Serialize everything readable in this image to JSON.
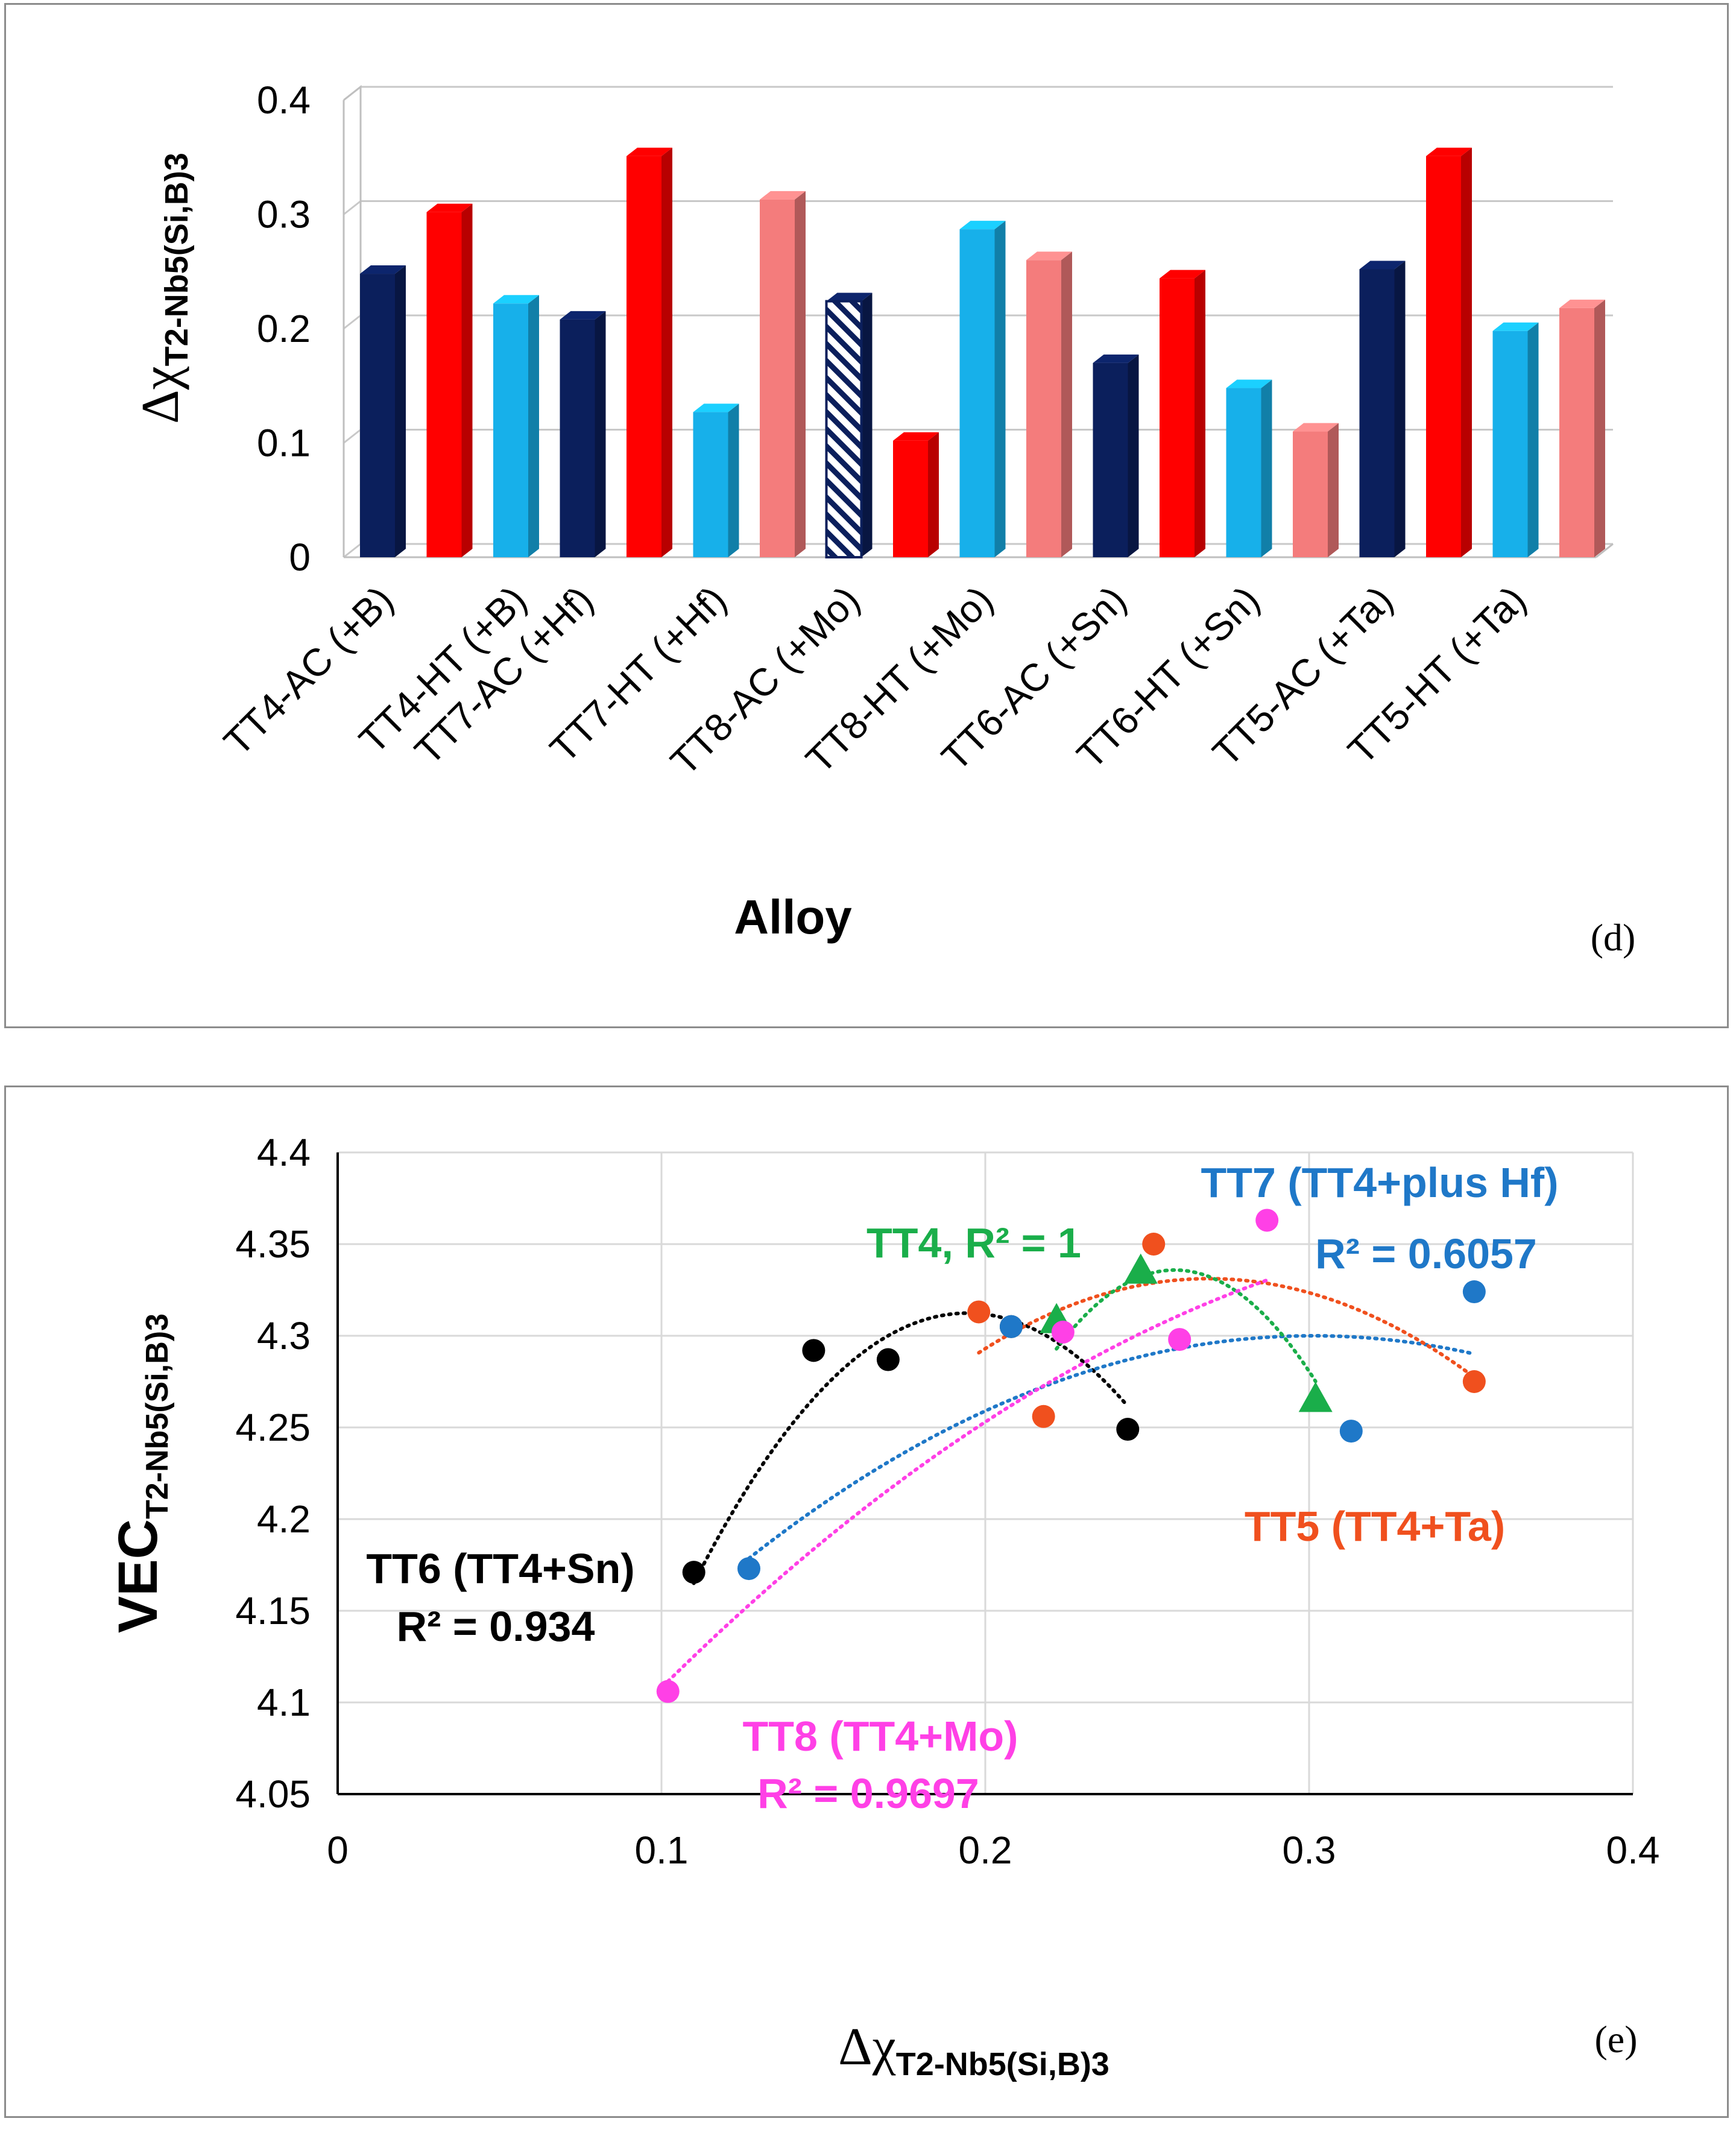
{
  "chart_data": [
    {
      "type": "bar",
      "panel_label": "(d)",
      "title": "",
      "xlabel": "Alloy",
      "ylabel": "Δχ",
      "ylabel_sub": "T2-Nb5(Si,B)3",
      "ylim": [
        0,
        0.4
      ],
      "yticks": [
        "0",
        "0.1",
        "0.2",
        "0.3",
        "0.4"
      ],
      "grid": true,
      "categories": [
        "TT4-AC (+B)",
        "TT4-HT (+B)",
        "TT7-AC (+Hf)",
        "TT7-HT (+Hf)",
        "TT8-AC (+Mo)",
        "TT8-HT (+Mo)",
        "TT6-AC (+Sn)",
        "TT6-HT (+Sn)",
        "TT5-AC (+Ta)",
        "TT5-HT (+Ta)"
      ],
      "category_positions": [
        0,
        2,
        3,
        5,
        7,
        9,
        11,
        13,
        15,
        17
      ],
      "bars": [
        {
          "value": 0.248,
          "color": "#0b1f5c",
          "fill": "solid"
        },
        {
          "value": 0.302,
          "color": "#ff0000",
          "fill": "solid"
        },
        {
          "value": 0.222,
          "color": "#17b0ea",
          "fill": "solid"
        },
        {
          "value": 0.208,
          "color": "#0b1f5c",
          "fill": "solid"
        },
        {
          "value": 0.351,
          "color": "#ff0000",
          "fill": "solid"
        },
        {
          "value": 0.127,
          "color": "#17b0ea",
          "fill": "solid"
        },
        {
          "value": 0.313,
          "color": "#f47c7c",
          "fill": "solid"
        },
        {
          "value": 0.224,
          "color": "#0b1f5c",
          "fill": "hatched"
        },
        {
          "value": 0.102,
          "color": "#ff0000",
          "fill": "solid"
        },
        {
          "value": 0.287,
          "color": "#17b0ea",
          "fill": "solid"
        },
        {
          "value": 0.26,
          "color": "#f47c7c",
          "fill": "solid"
        },
        {
          "value": 0.17,
          "color": "#0b1f5c",
          "fill": "solid"
        },
        {
          "value": 0.244,
          "color": "#ff0000",
          "fill": "solid"
        },
        {
          "value": 0.148,
          "color": "#17b0ea",
          "fill": "solid"
        },
        {
          "value": 0.11,
          "color": "#f47c7c",
          "fill": "solid"
        },
        {
          "value": 0.252,
          "color": "#0b1f5c",
          "fill": "solid"
        },
        {
          "value": 0.351,
          "color": "#ff0000",
          "fill": "solid"
        },
        {
          "value": 0.198,
          "color": "#17b0ea",
          "fill": "solid"
        },
        {
          "value": 0.218,
          "color": "#f47c7c",
          "fill": "solid"
        }
      ]
    },
    {
      "type": "scatter",
      "panel_label": "(e)",
      "title": "",
      "xlabel": "Δχ",
      "xlabel_sub": "T2-Nb5(Si,B)3",
      "ylabel": "VEC",
      "ylabel_sub": "T2-Nb5(Si,B)3",
      "xlim": [
        0,
        0.4
      ],
      "ylim": [
        4.05,
        4.4
      ],
      "xticks": [
        "0",
        "0.1",
        "0.2",
        "0.3",
        "0.4"
      ],
      "yticks": [
        "4.05",
        "4.1",
        "4.15",
        "4.2",
        "4.25",
        "4.3",
        "4.35",
        "4.4"
      ],
      "grid": true,
      "series": [
        {
          "name": "TT6 (TT4+Sn)",
          "r2_label": "R² = 0.934",
          "color": "#000000",
          "marker": "circle",
          "x": [
            0.11,
            0.147,
            0.17,
            0.208,
            0.244
          ],
          "y": [
            4.171,
            4.292,
            4.287,
            4.305,
            4.249
          ],
          "trend": [
            -20.667,
            8.037,
            3.531
          ],
          "trend_range": [
            0.11,
            0.244
          ]
        },
        {
          "name": "TT7 (TT4+plus Hf)",
          "r2_label": "R² = 0.6057",
          "color": "#1f78c8",
          "marker": "circle",
          "x": [
            0.127,
            0.208,
            0.313,
            0.351
          ],
          "y": [
            4.173,
            4.305,
            4.248,
            4.324
          ],
          "trend": [
            -4.0,
            2.41,
            3.937
          ],
          "trend_range": [
            0.127,
            0.351
          ]
        },
        {
          "name": "TT5 (TT4+Ta)",
          "color": "#f0501e",
          "marker": "circle",
          "x": [
            0.198,
            0.218,
            0.252,
            0.351
          ],
          "y": [
            4.313,
            4.256,
            4.35,
            4.275
          ],
          "trend": [
            -8.0,
            4.305,
            3.752
          ],
          "trend_range": [
            0.198,
            0.351
          ]
        },
        {
          "name": "TT4",
          "r2_label": "TT4, R² = 1",
          "color": "#1aae4a",
          "marker": "triangle",
          "x": [
            0.222,
            0.248,
            0.302
          ],
          "y": [
            4.308,
            4.335,
            4.265
          ],
          "trend": [
            -32.16,
            16.63,
            2.186
          ],
          "trend_range": [
            0.222,
            0.302
          ]
        },
        {
          "name": "TT8 (TT4+Mo)",
          "r2_label": "R² = 0.9697",
          "color": "#ff40e6",
          "marker": "circle",
          "x": [
            0.102,
            0.224,
            0.26,
            0.287
          ],
          "y": [
            4.106,
            4.302,
            4.298,
            4.363
          ],
          "trend": [
            -3.0,
            2.35,
            3.903
          ],
          "trend_range": [
            0.102,
            0.287
          ]
        }
      ]
    }
  ]
}
